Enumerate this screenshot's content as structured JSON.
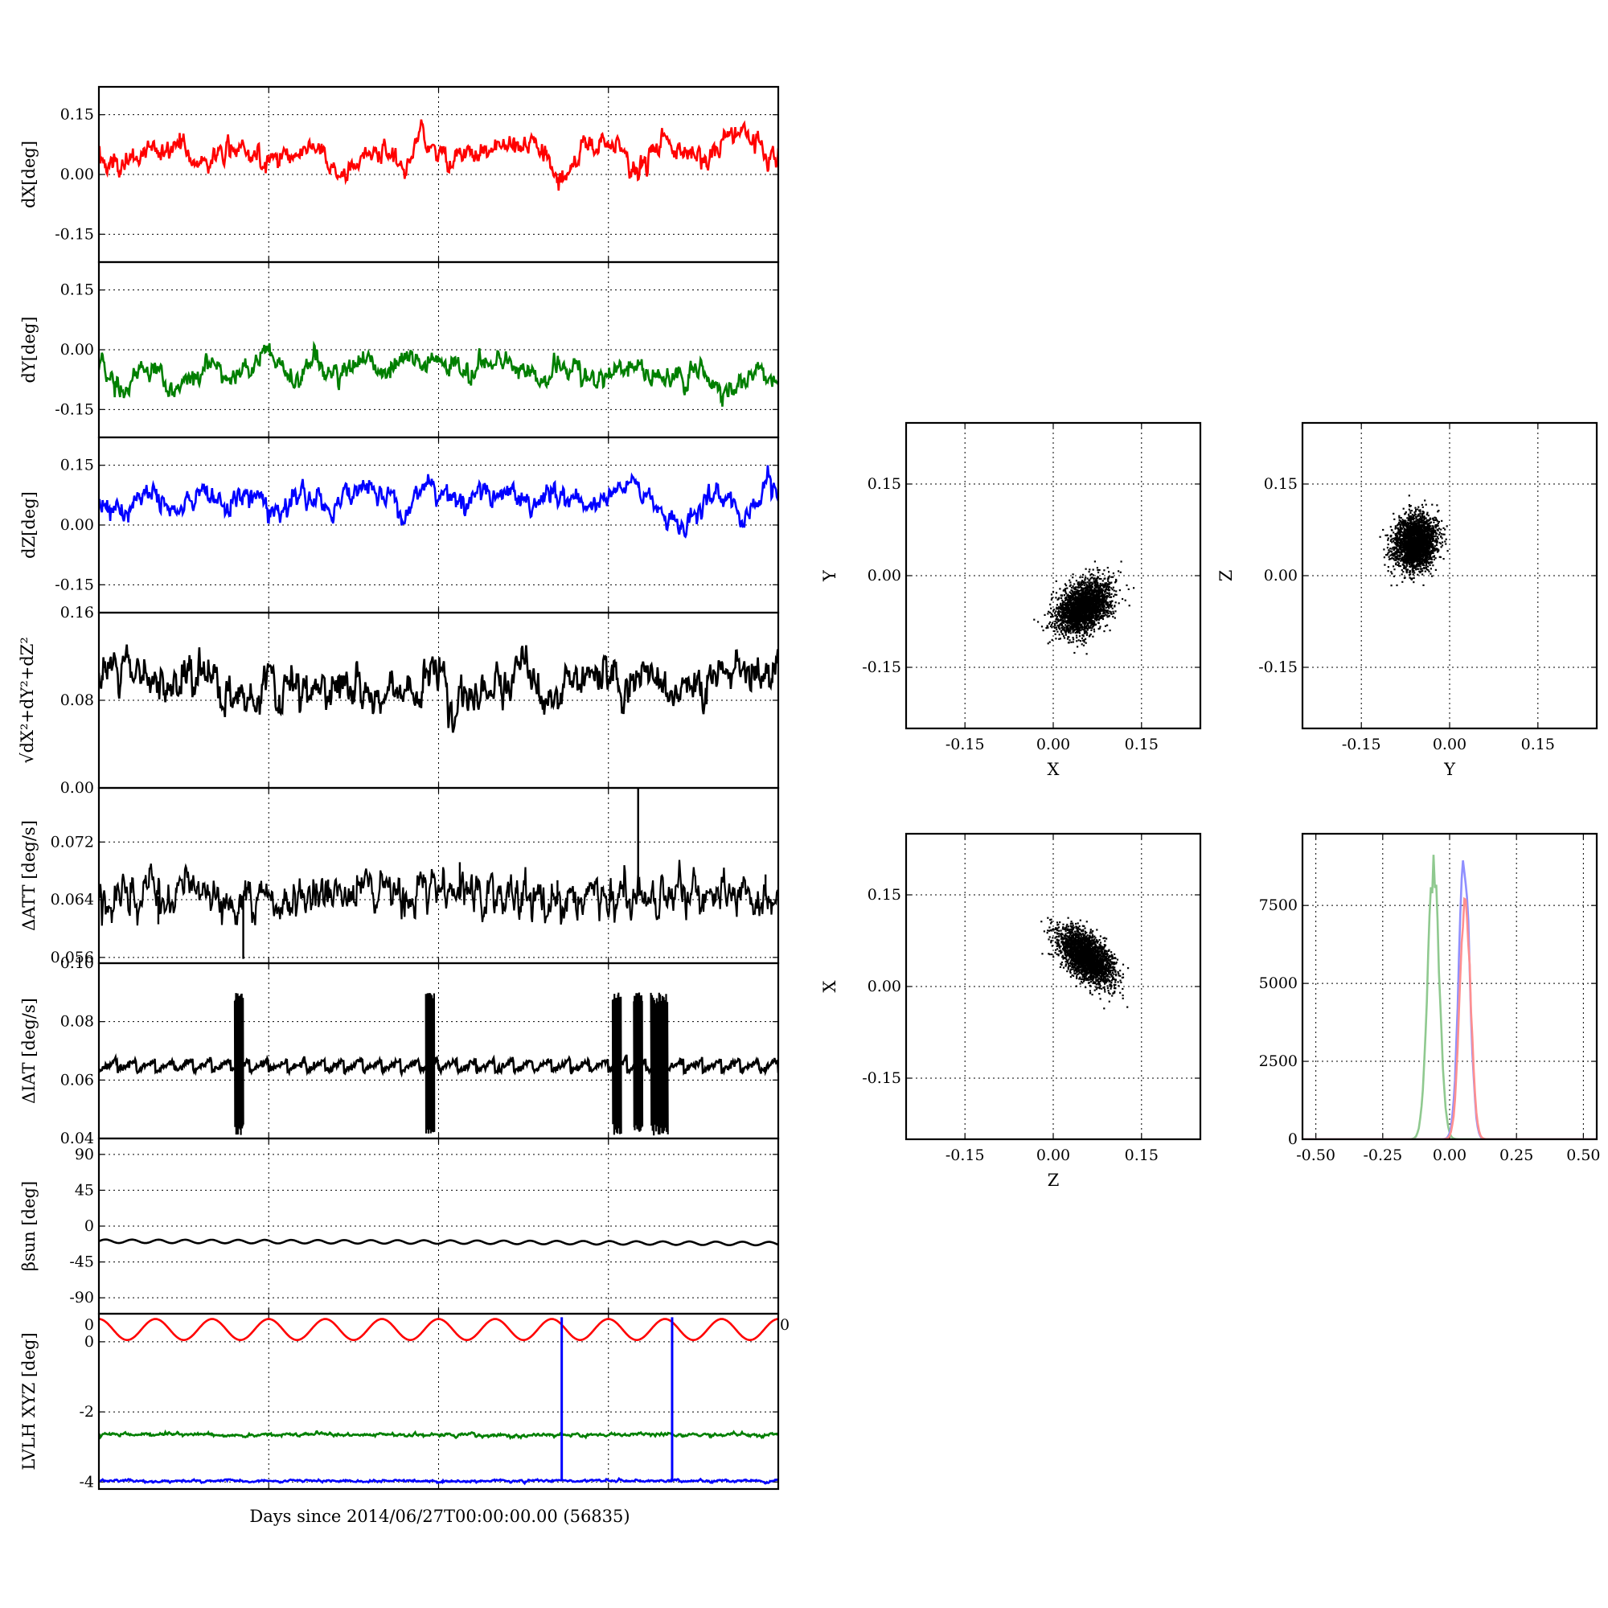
{
  "figure": {
    "xlabel": "Days since 2014/06/27T00:00:00.00 (56835)"
  },
  "chart_data": [
    {
      "id": "dX",
      "type": "line",
      "ylabel": "dX[deg]",
      "ylim": [
        -0.22,
        0.22
      ],
      "yticks": [
        "0.15",
        "0.00",
        "-0.15"
      ],
      "ytick_values": [
        0.15,
        0,
        -0.15
      ],
      "xlim": [
        0,
        8
      ],
      "xticks": [
        0,
        2,
        4,
        6,
        8
      ],
      "grid": true,
      "series": [
        {
          "color": "#ff0000",
          "baseline": 0.045,
          "noise": 0.012,
          "anchors": [
            [
              0,
              0.06
            ],
            [
              0.1,
              0.01
            ],
            [
              0.5,
              0.05
            ],
            [
              1.0,
              0.07
            ],
            [
              1.2,
              0.03
            ],
            [
              1.7,
              0.07
            ],
            [
              2.0,
              0.04
            ],
            [
              2.6,
              0.07
            ],
            [
              2.8,
              0.0
            ],
            [
              3.4,
              0.07
            ],
            [
              3.6,
              0.01
            ],
            [
              3.8,
              0.12
            ],
            [
              4.0,
              0.04
            ],
            [
              4.5,
              0.06
            ],
            [
              5.2,
              0.07
            ],
            [
              5.4,
              -0.02
            ],
            [
              5.8,
              0.08
            ],
            [
              6.2,
              0.07
            ],
            [
              6.3,
              -0.02
            ],
            [
              6.6,
              0.1
            ],
            [
              7.1,
              0.03
            ],
            [
              7.5,
              0.11
            ],
            [
              8.0,
              0.05
            ]
          ]
        }
      ]
    },
    {
      "id": "dY",
      "type": "line",
      "ylabel": "dY[deg]",
      "ylim": [
        -0.22,
        0.22
      ],
      "yticks": [
        "0.15",
        "0.00",
        "-0.15"
      ],
      "ytick_values": [
        0.15,
        0,
        -0.15
      ],
      "xlim": [
        0,
        8
      ],
      "xticks": [
        0,
        2,
        4,
        6,
        8
      ],
      "grid": true,
      "series": [
        {
          "color": "#007f00",
          "baseline": -0.06,
          "noise": 0.012,
          "anchors": [
            [
              0,
              -0.04
            ],
            [
              0.3,
              -0.11
            ],
            [
              0.5,
              -0.03
            ],
            [
              0.9,
              -0.11
            ],
            [
              1.3,
              -0.04
            ],
            [
              1.6,
              -0.08
            ],
            [
              2.0,
              0.0
            ],
            [
              2.3,
              -0.08
            ],
            [
              2.5,
              -0.03
            ],
            [
              2.9,
              -0.06
            ],
            [
              3.1,
              -0.02
            ],
            [
              3.4,
              -0.06
            ],
            [
              3.6,
              -0.03
            ],
            [
              4.0,
              -0.02
            ],
            [
              4.4,
              -0.06
            ],
            [
              4.8,
              -0.03
            ],
            [
              5.2,
              -0.07
            ],
            [
              5.6,
              -0.03
            ],
            [
              5.9,
              -0.07
            ],
            [
              6.2,
              -0.04
            ],
            [
              6.6,
              -0.08
            ],
            [
              7.0,
              -0.04
            ],
            [
              7.4,
              -0.1
            ],
            [
              7.8,
              -0.04
            ],
            [
              8.0,
              -0.09
            ]
          ]
        }
      ]
    },
    {
      "id": "dZ",
      "type": "line",
      "ylabel": "dZ[deg]",
      "ylim": [
        -0.22,
        0.22
      ],
      "yticks": [
        "0.15",
        "0.00",
        "-0.15"
      ],
      "ytick_values": [
        0.15,
        0,
        -0.15
      ],
      "xlim": [
        0,
        8
      ],
      "xticks": [
        0,
        2,
        4,
        6,
        8
      ],
      "grid": true,
      "series": [
        {
          "color": "#0000ff",
          "baseline": 0.055,
          "noise": 0.012,
          "anchors": [
            [
              0,
              0.06
            ],
            [
              0.3,
              0.02
            ],
            [
              0.6,
              0.09
            ],
            [
              0.9,
              0.03
            ],
            [
              1.2,
              0.09
            ],
            [
              1.5,
              0.03
            ],
            [
              1.8,
              0.09
            ],
            [
              2.0,
              0.02
            ],
            [
              2.4,
              0.08
            ],
            [
              2.7,
              0.04
            ],
            [
              3.1,
              0.09
            ],
            [
              3.6,
              0.04
            ],
            [
              3.8,
              0.1
            ],
            [
              4.2,
              0.06
            ],
            [
              4.7,
              0.1
            ],
            [
              5.1,
              0.05
            ],
            [
              5.4,
              0.1
            ],
            [
              5.8,
              0.04
            ],
            [
              6.3,
              0.11
            ],
            [
              6.6,
              0.03
            ],
            [
              6.9,
              0.0
            ],
            [
              7.3,
              0.08
            ],
            [
              7.6,
              0.02
            ],
            [
              7.9,
              0.12
            ],
            [
              8.0,
              0.06
            ]
          ]
        }
      ]
    },
    {
      "id": "dR",
      "type": "line",
      "ylabel": "√dX²+dY²+dZ²",
      "ylim": [
        0,
        0.16
      ],
      "yticks": [
        "0.16",
        "0.08",
        "0.00"
      ],
      "ytick_values": [
        0.16,
        0.08,
        0
      ],
      "xlim": [
        0,
        8
      ],
      "xticks": [
        0,
        2,
        4,
        6,
        8
      ],
      "grid": true,
      "series": [
        {
          "color": "#000000",
          "baseline": 0.09,
          "noise": 0.008,
          "anchors": [
            [
              0,
              0.1
            ],
            [
              0.3,
              0.12
            ],
            [
              0.7,
              0.09
            ],
            [
              1.2,
              0.11
            ],
            [
              1.5,
              0.09
            ],
            [
              1.7,
              0.09
            ],
            [
              2.0,
              0.09
            ],
            [
              2.5,
              0.085
            ],
            [
              3.0,
              0.09
            ],
            [
              3.2,
              0.08
            ],
            [
              3.6,
              0.09
            ],
            [
              3.9,
              0.11
            ],
            [
              4.2,
              0.08
            ],
            [
              4.6,
              0.09
            ],
            [
              5.0,
              0.1
            ],
            [
              5.4,
              0.09
            ],
            [
              5.8,
              0.1
            ],
            [
              6.2,
              0.1
            ],
            [
              6.4,
              0.12
            ],
            [
              6.6,
              0.08
            ],
            [
              7.0,
              0.09
            ],
            [
              7.4,
              0.1
            ],
            [
              8.0,
              0.11
            ]
          ]
        }
      ]
    },
    {
      "id": "dATT",
      "type": "line",
      "ylabel": "ΔATT [deg/s]",
      "ylim": [
        0.0552,
        0.0795
      ],
      "yticks": [
        "0.072",
        "0.064",
        "0.056"
      ],
      "ytick_values": [
        0.072,
        0.064,
        0.056
      ],
      "xlim": [
        0,
        8
      ],
      "xticks": [
        0,
        2,
        4,
        6,
        8
      ],
      "grid": true,
      "series": [
        {
          "color": "#000000",
          "baseline": 0.0642,
          "noise": 0.0012,
          "anchors": [
            [
              0,
              0.0642
            ],
            [
              2.4,
              0.0641
            ],
            [
              3.0,
              0.0648
            ],
            [
              4.0,
              0.0648
            ],
            [
              6.0,
              0.0649
            ],
            [
              8.0,
              0.0645
            ]
          ]
        }
      ]
    },
    {
      "id": "dIAT",
      "type": "line",
      "ylabel": "ΔIAT [deg/s]",
      "ylim": [
        0.04,
        0.1
      ],
      "yticks": [
        "0.10",
        "0.08",
        "0.06",
        "0.04"
      ],
      "ytick_values": [
        0.1,
        0.08,
        0.06,
        0.04
      ],
      "xlim": [
        0,
        8
      ],
      "xticks": [
        0,
        2,
        4,
        6,
        8
      ],
      "grid": true,
      "series": [
        {
          "color": "#000000",
          "baseline": 0.064,
          "noise": 0.001,
          "anchors": [
            [
              0,
              0.064
            ],
            [
              8,
              0.065
            ]
          ]
        }
      ]
    },
    {
      "id": "beta",
      "type": "line",
      "ylabel": "βsun [deg]",
      "ylim": [
        -110,
        110
      ],
      "yticks": [
        "90",
        "45",
        "0",
        "-45",
        "-90"
      ],
      "ytick_values": [
        90,
        45,
        0,
        -45,
        -90
      ],
      "xlim": [
        0,
        8
      ],
      "xticks": [
        0,
        2,
        4,
        6,
        8
      ],
      "grid": true,
      "series": [
        {
          "color": "#000000",
          "baseline": -20,
          "noise": 0,
          "anchors": [
            [
              0,
              -19
            ],
            [
              4,
              -20
            ],
            [
              8,
              -22
            ]
          ]
        }
      ]
    },
    {
      "id": "lvlh",
      "type": "line",
      "ylabel": "LVLH XYZ [deg]",
      "ylim": [
        -4.2,
        0.8
      ],
      "yticks": [
        "0",
        "-2",
        "-4"
      ],
      "ytick_values": [
        0,
        -2,
        -4
      ],
      "corner_ticks": [
        "0",
        "0"
      ],
      "xlim": [
        0,
        8
      ],
      "xticks": [
        0,
        2,
        4,
        6,
        8
      ],
      "grid": true,
      "series": [
        {
          "color": "#ff0000",
          "baseline": 0.35,
          "noise": 0,
          "anchors": [
            [
              0,
              0.35
            ],
            [
              8,
              0.35
            ]
          ]
        },
        {
          "color": "#007f00",
          "baseline": -2.65,
          "noise": 0.02,
          "anchors": [
            [
              0,
              -2.65
            ],
            [
              8,
              -2.65
            ]
          ]
        },
        {
          "color": "#0000ff",
          "baseline": -3.97,
          "noise": 0.015,
          "anchors": [
            [
              0,
              -3.97
            ],
            [
              8,
              -3.97
            ]
          ]
        }
      ]
    },
    {
      "id": "scatter_xy",
      "type": "scatter",
      "xlabel": "X",
      "ylabel": "Y",
      "xlim": [
        -0.25,
        0.25
      ],
      "ylim": [
        -0.25,
        0.25
      ],
      "xticks": [
        "-0.15",
        "0.00",
        "0.15"
      ],
      "yticks": [
        "0.15",
        "0.00",
        "-0.15"
      ],
      "tick_values": [
        -0.15,
        0,
        0.15
      ],
      "grid": true,
      "center": [
        0.05,
        -0.05
      ],
      "spread": [
        0.022,
        0.022
      ],
      "corr": 0.35,
      "color": "#000000"
    },
    {
      "id": "scatter_yz",
      "type": "scatter",
      "xlabel": "Y",
      "ylabel": "Z",
      "xlim": [
        -0.25,
        0.25
      ],
      "ylim": [
        -0.25,
        0.25
      ],
      "xticks": [
        "-0.15",
        "0.00",
        "0.15"
      ],
      "yticks": [
        "0.15",
        "0.00",
        "-0.15"
      ],
      "tick_values": [
        -0.15,
        0,
        0.15
      ],
      "grid": true,
      "center": [
        -0.06,
        0.055
      ],
      "spread": [
        0.018,
        0.022
      ],
      "corr": 0.1,
      "color": "#000000"
    },
    {
      "id": "scatter_zx",
      "type": "scatter",
      "xlabel": "Z",
      "ylabel": "X",
      "xlim": [
        -0.25,
        0.25
      ],
      "ylim": [
        -0.25,
        0.25
      ],
      "xticks": [
        "-0.15",
        "0.00",
        "0.15"
      ],
      "yticks": [
        "0.15",
        "0.00",
        "-0.15"
      ],
      "tick_values": [
        -0.15,
        0,
        0.15
      ],
      "grid": true,
      "center": [
        0.055,
        0.05
      ],
      "spread": [
        0.022,
        0.022
      ],
      "corr": -0.55,
      "color": "#000000"
    },
    {
      "id": "histogram",
      "type": "line",
      "xlim": [
        -0.55,
        0.55
      ],
      "ylim": [
        0,
        9800
      ],
      "xticks": [
        "-0.50",
        "-0.25",
        "0.00",
        "0.25",
        "0.50"
      ],
      "xtick_values": [
        -0.5,
        -0.25,
        0,
        0.25,
        0.5
      ],
      "yticks": [
        "7500",
        "5000",
        "2500",
        "0"
      ],
      "ytick_values": [
        7500,
        5000,
        2500,
        0
      ],
      "grid": true,
      "series": [
        {
          "color": "#8fc98f",
          "mean": -0.06,
          "sigma": 0.022,
          "peak": 8600
        },
        {
          "color": "#8f8fff",
          "mean": 0.055,
          "sigma": 0.02,
          "peak": 9000
        },
        {
          "color": "#ff8f8f",
          "mean": 0.058,
          "sigma": 0.02,
          "peak": 7800
        }
      ]
    }
  ]
}
